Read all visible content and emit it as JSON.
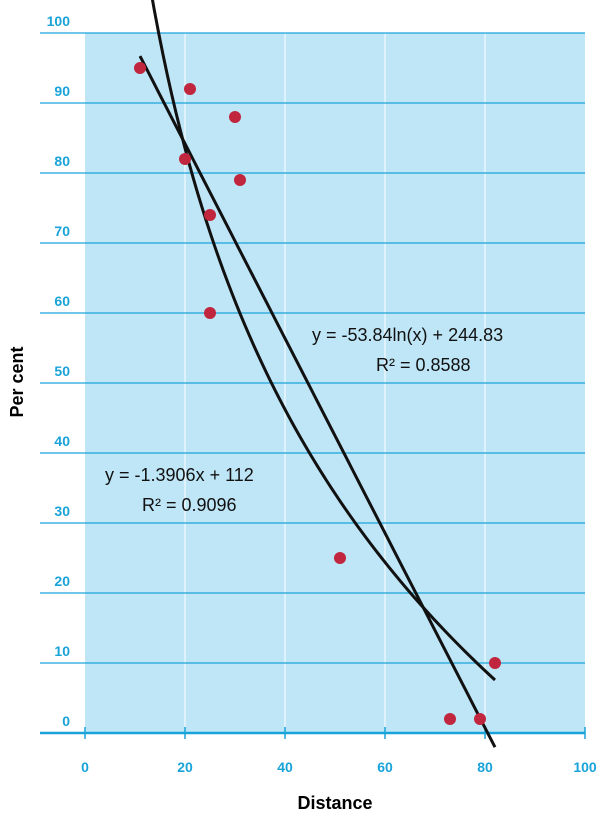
{
  "chart_data": {
    "type": "scatter",
    "xlabel": "Distance",
    "ylabel": "Per cent",
    "xlim": [
      0,
      100
    ],
    "ylim": [
      0,
      100
    ],
    "x_ticks": [
      "0",
      "20",
      "40",
      "60",
      "80",
      "100"
    ],
    "y_ticks": [
      "0",
      "10",
      "20",
      "30",
      "40",
      "50",
      "60",
      "70",
      "80",
      "90",
      "100"
    ],
    "grid": true,
    "colors": {
      "plot_background": "#bfe6f7",
      "gridline": "#1aa3d9",
      "tick_label": "#1aa3d9",
      "point": "#c0263e",
      "trendline": "#111111"
    },
    "points": [
      {
        "x": 11,
        "y": 95
      },
      {
        "x": 20,
        "y": 82
      },
      {
        "x": 21,
        "y": 92
      },
      {
        "x": 25,
        "y": 74
      },
      {
        "x": 25,
        "y": 60
      },
      {
        "x": 30,
        "y": 88
      },
      {
        "x": 31,
        "y": 79
      },
      {
        "x": 51,
        "y": 25
      },
      {
        "x": 73,
        "y": 2
      },
      {
        "x": 79,
        "y": 2
      },
      {
        "x": 82,
        "y": 10
      }
    ],
    "trendlines": [
      {
        "kind": "linear",
        "slope": -1.3906,
        "intercept": 112,
        "x_range": [
          11,
          82
        ],
        "equation": "y = -1.3906x + 112",
        "r2": "R² = 0.9096"
      },
      {
        "kind": "log",
        "a": -53.84,
        "b": 244.83,
        "x_range": [
          13,
          82
        ],
        "equation": "y = -53.84ln(x) + 244.83",
        "r2": "R² = 0.8588"
      }
    ]
  }
}
